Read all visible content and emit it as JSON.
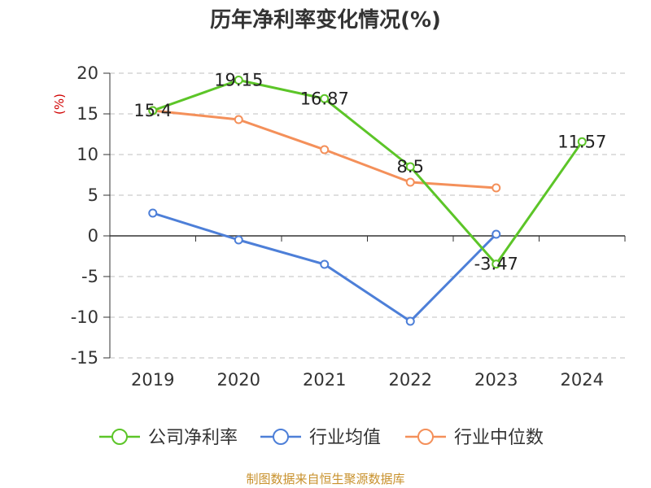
{
  "chart_data": {
    "type": "line",
    "title": "历年净利率变化情况(%)",
    "ylabel": "(%)",
    "xlabel": "",
    "categories": [
      "2019",
      "2020",
      "2021",
      "2022",
      "2023",
      "2024"
    ],
    "ylim": [
      -15,
      20
    ],
    "yticks": [
      20,
      15,
      10,
      5,
      0,
      -5,
      -10,
      -15
    ],
    "grid": true,
    "legend_position": "bottom",
    "series": [
      {
        "name": "公司净利率",
        "color": "#5cc528",
        "values": [
          15.4,
          19.15,
          16.87,
          8.5,
          -3.47,
          11.57
        ],
        "labels": [
          "15.4",
          "19.15",
          "16.87",
          "8.5",
          "-3.47",
          "11.57"
        ]
      },
      {
        "name": "行业均值",
        "color": "#4d7fd8",
        "values": [
          2.8,
          -0.5,
          -3.5,
          -10.5,
          0.2,
          null
        ]
      },
      {
        "name": "行业中位数",
        "color": "#f4905a",
        "values": [
          15.4,
          14.3,
          10.6,
          6.6,
          5.9,
          null
        ]
      }
    ]
  },
  "source": "制图数据来自恒生聚源数据库"
}
